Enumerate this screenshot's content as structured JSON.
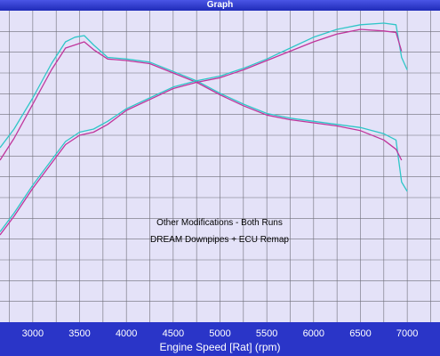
{
  "window": {
    "title": "Graph"
  },
  "chart_data": {
    "type": "line",
    "xlabel": "Engine Speed [Rat] (rpm)",
    "xlim": [
      2650,
      7350
    ],
    "ylim": [
      0,
      100
    ],
    "x_ticks": [
      3000,
      3500,
      4000,
      4500,
      5000,
      5500,
      6000,
      6500,
      7000
    ],
    "grid": true,
    "annotations": [
      "Other Modifications - Both Runs",
      "DREAM Downpipes + ECU Remap"
    ],
    "series": [
      {
        "color": "#2fc6c8",
        "x": [
          2650,
          2800,
          3000,
          3200,
          3350,
          3450,
          3550,
          3650,
          3800,
          4000,
          4250,
          4500,
          4750,
          5000,
          5250,
          5500,
          5750,
          6000,
          6250,
          6500,
          6750,
          6880,
          6940,
          7000
        ],
        "y": [
          56,
          62,
          72,
          83,
          90,
          91.5,
          92,
          89,
          85,
          84.5,
          83.5,
          80.5,
          77.5,
          73.5,
          70,
          67,
          65.5,
          64.5,
          63.5,
          62.5,
          60.5,
          58.5,
          45,
          42
        ]
      },
      {
        "color": "#c0359c",
        "x": [
          2650,
          2800,
          3000,
          3200,
          3350,
          3450,
          3550,
          3650,
          3800,
          4000,
          4250,
          4500,
          4750,
          5000,
          5250,
          5500,
          5750,
          6000,
          6250,
          6500,
          6750,
          6880,
          6940
        ],
        "y": [
          52,
          59,
          70,
          81,
          88,
          89,
          90,
          87.5,
          84.5,
          84,
          83,
          80,
          77,
          73,
          69.5,
          66.5,
          65,
          64,
          63,
          61.5,
          58.5,
          55.5,
          52
        ]
      },
      {
        "color": "#2fc6c8",
        "x": [
          2650,
          2800,
          3000,
          3200,
          3350,
          3500,
          3650,
          3800,
          4000,
          4250,
          4500,
          4750,
          5000,
          5250,
          5500,
          5750,
          6000,
          6250,
          6500,
          6750,
          6880,
          6940,
          7000
        ],
        "y": [
          29,
          35,
          44,
          52,
          58,
          61,
          62,
          64.5,
          68.5,
          72,
          75.5,
          77.5,
          79,
          81.5,
          84.5,
          88,
          91.5,
          94,
          95.5,
          96,
          95.5,
          85,
          81
        ]
      },
      {
        "color": "#c0359c",
        "x": [
          2650,
          2800,
          3000,
          3200,
          3350,
          3500,
          3650,
          3800,
          4000,
          4250,
          4500,
          4750,
          5000,
          5250,
          5500,
          5750,
          6000,
          6250,
          6500,
          6750,
          6880,
          6940
        ],
        "y": [
          28,
          34,
          43,
          51,
          57,
          60,
          61,
          63.5,
          68,
          71.5,
          75,
          77,
          78.5,
          81,
          84,
          87,
          90,
          92.5,
          94,
          93.5,
          93,
          87
        ]
      }
    ]
  }
}
